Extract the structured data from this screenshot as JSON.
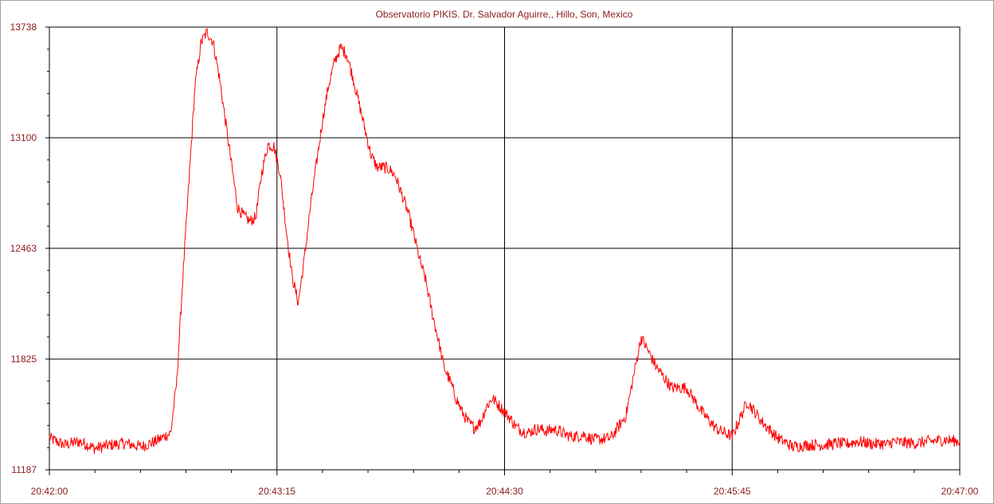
{
  "chart_data": {
    "type": "line",
    "title": "Observatorio PIKIS. Dr. Salvador Aguirre,, Hillo, Son, Mexico",
    "xlabel": "",
    "ylabel": "",
    "x_tick_labels": [
      "20:42:00",
      "20:43:15",
      "20:44:30",
      "20:45:45",
      "20:47:00"
    ],
    "x_range_seconds": [
      0,
      300
    ],
    "y_ticks": [
      11187,
      11825,
      12463,
      13100,
      13738
    ],
    "y_tick_labels": [
      "11187",
      "11825",
      "12463",
      "13100",
      "13738"
    ],
    "ylim": [
      11187,
      13738
    ],
    "grid": true,
    "line_color": "#ff0000",
    "text_color": "#8b1a1a",
    "series": [
      {
        "x": [
          0,
          5,
          10,
          15,
          20,
          25,
          30,
          35,
          40,
          42,
          44,
          46,
          48,
          50,
          52,
          54,
          56,
          58,
          60,
          62,
          64,
          66,
          68,
          70,
          72,
          74,
          76,
          78,
          80,
          82,
          84,
          86,
          88,
          90,
          92,
          94,
          96,
          98,
          100,
          102,
          104,
          106,
          108,
          110,
          112,
          114,
          116,
          118,
          120,
          122,
          124,
          126,
          128,
          130,
          132,
          134,
          136,
          138,
          140,
          142,
          144,
          146,
          148,
          150,
          152,
          154,
          156,
          158,
          160,
          162,
          164,
          166,
          168,
          170,
          172,
          174,
          176,
          178,
          180,
          185,
          190,
          195,
          200,
          205,
          210,
          215,
          220,
          225,
          230,
          235,
          240,
          245,
          250,
          255,
          260,
          262,
          264,
          266,
          268,
          270,
          272,
          274,
          276,
          278,
          280,
          285,
          290,
          295,
          300
        ],
        "y": [
          11370,
          11330,
          11350,
          11310,
          11330,
          11340,
          11320,
          11350,
          11400,
          11700,
          12300,
          12850,
          13400,
          13650,
          13710,
          13650,
          13450,
          13200,
          12950,
          12700,
          12650,
          12620,
          12640,
          12900,
          13060,
          13050,
          12900,
          12580,
          12300,
          12150,
          12400,
          12700,
          12950,
          13200,
          13400,
          13540,
          13620,
          13580,
          13450,
          13300,
          13150,
          13000,
          12930,
          12930,
          12920,
          12880,
          12780,
          12680,
          12550,
          12400,
          12280,
          12100,
          11950,
          11780,
          11700,
          11600,
          11520,
          11460,
          11430,
          11460,
          11550,
          11600,
          11560,
          11520,
          11480,
          11430,
          11410,
          11400,
          11420,
          11420,
          11410,
          11420,
          11410,
          11390,
          11380,
          11380,
          11390,
          11370,
          11360,
          11370,
          11500,
          11950,
          11780,
          11660,
          11660,
          11520,
          11420,
          11380,
          11580,
          11460,
          11370,
          11320,
          11330,
          11330,
          11340,
          11335,
          11340,
          11350,
          11345,
          11340,
          11335,
          11340,
          11330,
          11350,
          11345,
          11340,
          11350,
          11360,
          11350
        ]
      }
    ]
  }
}
